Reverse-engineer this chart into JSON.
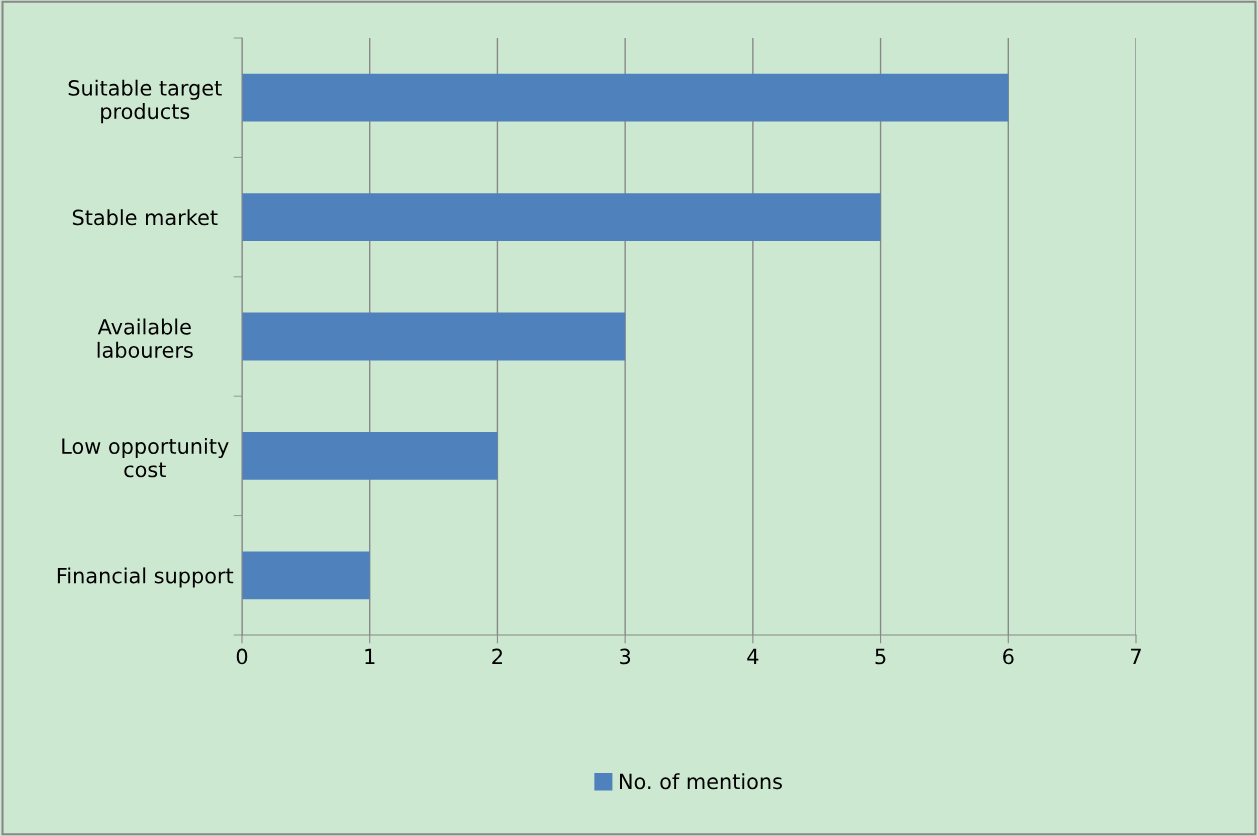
{
  "chart_data": {
    "type": "bar",
    "orientation": "horizontal",
    "categories": [
      "Suitable target\nproducts",
      "Stable market",
      "Available\nlabourers",
      "Low opportunity\ncost",
      "Financial support"
    ],
    "series": [
      {
        "name": "No. of mentions",
        "color": "#4f81bd",
        "values": [
          6,
          5,
          3,
          2,
          1
        ]
      }
    ],
    "xlim": [
      0,
      7
    ],
    "xticks": [
      0,
      1,
      2,
      3,
      4,
      5,
      6,
      7
    ],
    "grid": "x",
    "legend": "bottom"
  }
}
